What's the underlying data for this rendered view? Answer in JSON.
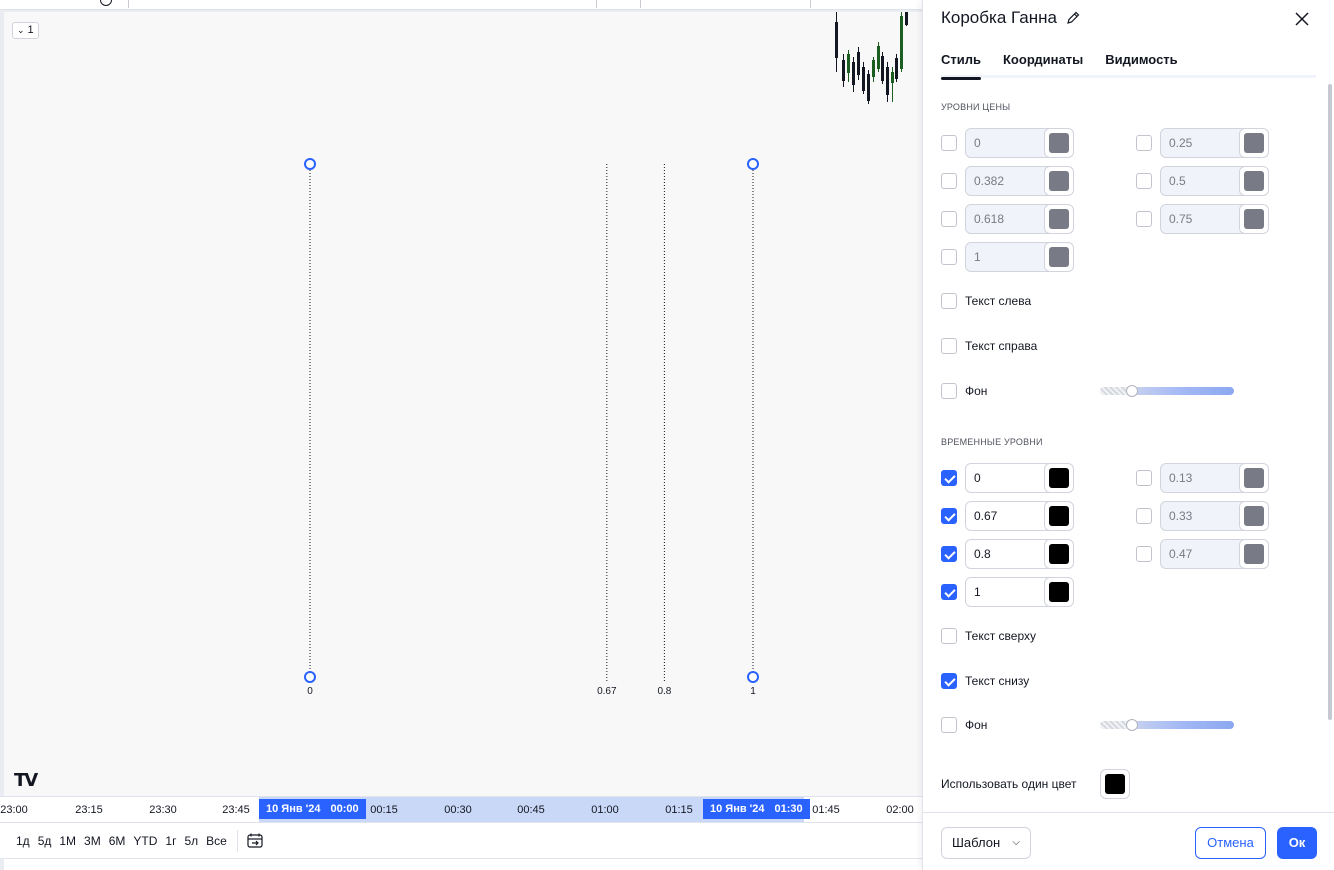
{
  "chart": {
    "pane_chip": "1",
    "fib_levels": [
      {
        "label": "0",
        "value": 0
      },
      {
        "label": "0.67",
        "value": 0.67
      },
      {
        "label": "0.8",
        "value": 0.8
      },
      {
        "label": "1",
        "value": 1
      }
    ],
    "time_axis": {
      "ticks": [
        "23:00",
        "23:15",
        "23:30",
        "23:45",
        "00:15",
        "00:30",
        "00:45",
        "01:00",
        "01:15",
        "01:45",
        "02:00"
      ],
      "flag_start": {
        "date": "10 Янв '24",
        "time": "00:00"
      },
      "flag_end": {
        "date": "10 Янв '24",
        "time": "01:30"
      }
    },
    "ranges": [
      "1д",
      "5д",
      "1М",
      "3М",
      "6М",
      "YTD",
      "1г",
      "5л",
      "Все"
    ],
    "accent_color": "#2962ff",
    "candle_up_color": "#1b5e20",
    "candle_down_color": "#131722"
  },
  "dialog": {
    "title": "Коробка Ганна",
    "tabs": [
      "Стиль",
      "Координаты",
      "Видимость"
    ],
    "price_levels_title": "УРОВНИ ЦЕНЫ",
    "price_levels": [
      {
        "value": "0",
        "checked": false,
        "color": "#787b86"
      },
      {
        "value": "0.25",
        "checked": false,
        "color": "#787b86"
      },
      {
        "value": "0.382",
        "checked": false,
        "color": "#787b86"
      },
      {
        "value": "0.5",
        "checked": false,
        "color": "#787b86"
      },
      {
        "value": "0.618",
        "checked": false,
        "color": "#787b86"
      },
      {
        "value": "0.75",
        "checked": false,
        "color": "#787b86"
      },
      {
        "value": "1",
        "checked": false,
        "color": "#787b86"
      }
    ],
    "text_left": "Текст слева",
    "text_right": "Текст справа",
    "background_1": "Фон",
    "time_levels_title": "ВРЕМЕННЫЕ УРОВНИ",
    "time_levels": [
      {
        "value": "0",
        "checked": true,
        "color": "#000000"
      },
      {
        "value": "0.13",
        "checked": false,
        "color": "#787b86"
      },
      {
        "value": "0.67",
        "checked": true,
        "color": "#000000"
      },
      {
        "value": "0.33",
        "checked": false,
        "color": "#787b86"
      },
      {
        "value": "0.8",
        "checked": true,
        "color": "#000000"
      },
      {
        "value": "0.47",
        "checked": false,
        "color": "#787b86"
      },
      {
        "value": "1",
        "checked": true,
        "color": "#000000"
      }
    ],
    "text_top": "Текст сверху",
    "text_bottom": "Текст снизу",
    "text_bottom_checked": true,
    "background_2": "Фон",
    "use_one_color": "Использовать один цвет",
    "template": "Шаблон",
    "cancel": "Отмена",
    "ok": "Ок"
  }
}
